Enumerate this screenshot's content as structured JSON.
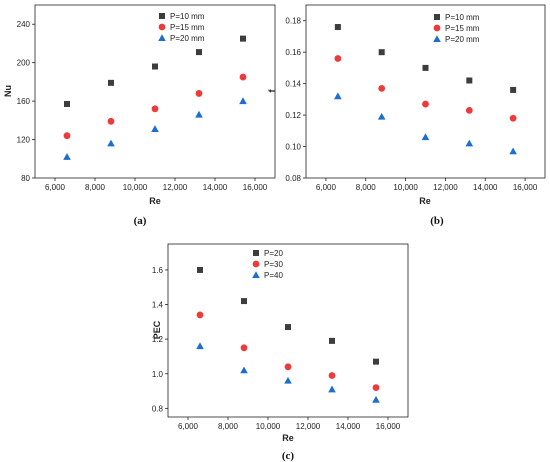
{
  "colors": {
    "square": "#3d3d3d",
    "circle": "#ee3a3a",
    "triangle": "#1c6fd1"
  },
  "chart_data": [
    {
      "type": "scatter",
      "caption": "(a)",
      "xlabel": "Re",
      "ylabel": "Nu",
      "xlim": [
        5000,
        17000
      ],
      "ylim": [
        80,
        260
      ],
      "xticks": [
        6000,
        8000,
        10000,
        12000,
        14000,
        16000
      ],
      "xtick_labels": [
        "6,000",
        "8,000",
        "10,000",
        "12,000",
        "14,000",
        "16,000"
      ],
      "yticks": [
        80,
        120,
        160,
        200,
        240
      ],
      "ytick_labels": [
        "80",
        "120",
        "160",
        "200",
        "240"
      ],
      "legend_position": "top-left",
      "x": [
        6600,
        8800,
        11000,
        13200,
        15400
      ],
      "series": [
        {
          "name": "P=10 mm",
          "marker": "square",
          "values": [
            157,
            179,
            196,
            211,
            225
          ]
        },
        {
          "name": "P=15 mm",
          "marker": "circle",
          "values": [
            124,
            139,
            152,
            168,
            185
          ]
        },
        {
          "name": "P=20 mm",
          "marker": "triangle",
          "values": [
            102,
            116,
            131,
            146,
            160
          ]
        }
      ]
    },
    {
      "type": "scatter",
      "caption": "(b)",
      "xlabel": "Re",
      "ylabel": "f",
      "xlim": [
        5000,
        17000
      ],
      "ylim": [
        0.08,
        0.19
      ],
      "xticks": [
        6000,
        8000,
        10000,
        12000,
        14000,
        16000
      ],
      "xtick_labels": [
        "6,000",
        "8,000",
        "10,000",
        "12,000",
        "14,000",
        "16,000"
      ],
      "yticks": [
        0.08,
        0.1,
        0.12,
        0.14,
        0.16,
        0.18
      ],
      "ytick_labels": [
        "0.08",
        "0.10",
        "0.12",
        "0.14",
        "0.16",
        "0.18"
      ],
      "legend_position": "top-right",
      "x": [
        6600,
        8800,
        11000,
        13200,
        15400
      ],
      "series": [
        {
          "name": "P=10 mm",
          "marker": "square",
          "values": [
            0.176,
            0.16,
            0.15,
            0.142,
            0.136
          ]
        },
        {
          "name": "P=15 mm",
          "marker": "circle",
          "values": [
            0.156,
            0.137,
            0.127,
            0.123,
            0.118
          ]
        },
        {
          "name": "P=20 mm",
          "marker": "triangle",
          "values": [
            0.132,
            0.119,
            0.106,
            0.102,
            0.097
          ]
        }
      ]
    },
    {
      "type": "scatter",
      "caption": "(c)",
      "xlabel": "Re",
      "ylabel": "PEC",
      "xlim": [
        5000,
        17000
      ],
      "ylim": [
        0.75,
        1.75
      ],
      "xticks": [
        6000,
        8000,
        10000,
        12000,
        14000,
        16000
      ],
      "xtick_labels": [
        "6,000",
        "8,000",
        "10,000",
        "12,000",
        "14,000",
        "16,000"
      ],
      "yticks": [
        0.8,
        1.0,
        1.2,
        1.4,
        1.6
      ],
      "ytick_labels": [
        "0.8",
        "1.0",
        "1.2",
        "1.4",
        "1.6"
      ],
      "legend_position": "top-right",
      "x": [
        6600,
        8800,
        11000,
        13200,
        15400
      ],
      "series": [
        {
          "name": "P=20",
          "marker": "square",
          "values": [
            1.6,
            1.42,
            1.27,
            1.19,
            1.07
          ]
        },
        {
          "name": "P=30",
          "marker": "circle",
          "values": [
            1.34,
            1.15,
            1.04,
            0.99,
            0.92
          ]
        },
        {
          "name": "P=40",
          "marker": "triangle",
          "values": [
            1.16,
            1.02,
            0.96,
            0.91,
            0.85
          ]
        }
      ]
    }
  ]
}
